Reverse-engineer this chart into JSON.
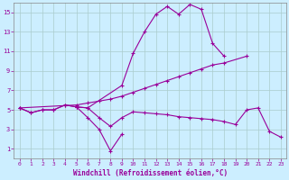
{
  "xlabel": "Windchill (Refroidissement éolien,°C)",
  "bg_color": "#cceeff",
  "line_color": "#990099",
  "grid_color": "#aacccc",
  "ylim": [
    0,
    16
  ],
  "xlim": [
    -0.5,
    23.5
  ],
  "yticks": [
    1,
    3,
    5,
    7,
    9,
    11,
    13,
    15
  ],
  "xticks": [
    0,
    1,
    2,
    3,
    4,
    5,
    6,
    7,
    8,
    9,
    10,
    11,
    12,
    13,
    14,
    15,
    16,
    17,
    18,
    19,
    20,
    21,
    22,
    23
  ],
  "upper_x": [
    0,
    1,
    2,
    3,
    4,
    5,
    6,
    9,
    10,
    11,
    12,
    13,
    14,
    15,
    16,
    17,
    18
  ],
  "upper_y": [
    5.2,
    4.7,
    5.0,
    5.0,
    5.5,
    5.3,
    5.2,
    7.5,
    10.8,
    13.0,
    14.8,
    15.6,
    14.8,
    15.8,
    15.3,
    11.8,
    10.5
  ],
  "lower_x": [
    0,
    1,
    2,
    3,
    4,
    5,
    6,
    7,
    8,
    9,
    10,
    11,
    12,
    13,
    14,
    15,
    16,
    17,
    18,
    19,
    20,
    21,
    22,
    23
  ],
  "lower_y": [
    5.2,
    4.7,
    5.0,
    5.0,
    5.5,
    5.3,
    5.2,
    4.2,
    3.3,
    4.2,
    4.8,
    4.7,
    4.6,
    4.5,
    4.3,
    4.2,
    4.1,
    4.0,
    3.8,
    3.5,
    5.0,
    5.2,
    2.8,
    2.2
  ],
  "straight_x": [
    0,
    5,
    6,
    7,
    8,
    9,
    10,
    11,
    12,
    13,
    14,
    15,
    16,
    17,
    18,
    20
  ],
  "straight_y": [
    5.2,
    5.5,
    5.7,
    5.9,
    6.1,
    6.4,
    6.8,
    7.2,
    7.6,
    8.0,
    8.4,
    8.8,
    9.2,
    9.6,
    9.8,
    10.5
  ],
  "dip_x": [
    5,
    6,
    7,
    8,
    9
  ],
  "dip_y": [
    5.3,
    4.2,
    3.0,
    0.8,
    2.5
  ]
}
